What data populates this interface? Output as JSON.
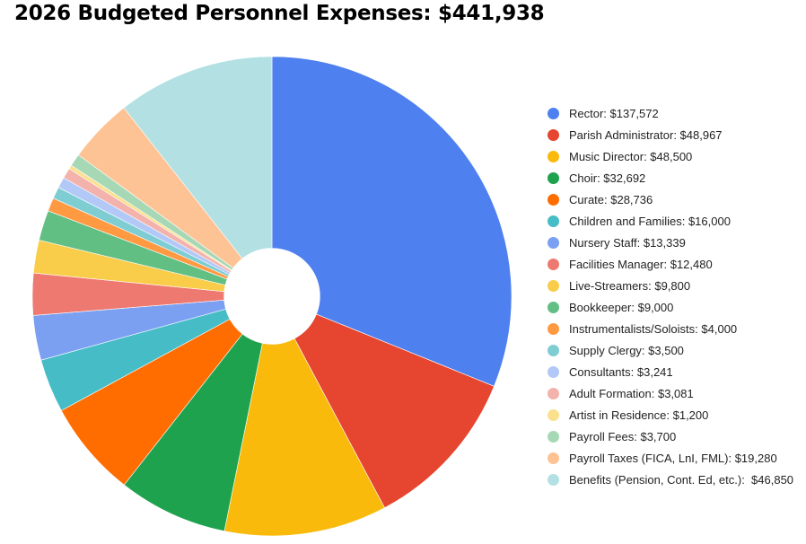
{
  "title": "2026 Budgeted Personnel Expenses: $441,938",
  "chart_data": {
    "type": "pie",
    "title": "2026 Budgeted Personnel Expenses: $441,938",
    "pie_hole": 0.2,
    "start_angle_deg": 0,
    "legend_position": "right",
    "categories": [
      "Rector",
      "Parish Administrator",
      "Music Director",
      "Choir",
      "Curate",
      "Children and Families",
      "Nursery Staff",
      "Facilities Manager",
      "Live-Streamers",
      "Bookkeeper",
      "Instrumentalists/Soloists",
      "Supply Clergy",
      "Consultants",
      "Adult Formation",
      "Artist in Residence",
      "Payroll Fees",
      "Payroll Taxes (FICA, LnI, FML)",
      "Benefits (Pension, Cont. Ed, etc.)"
    ],
    "values": [
      137572,
      48967,
      48500,
      32692,
      28736,
      16000,
      13339,
      12480,
      9800,
      9000,
      4000,
      3500,
      3241,
      3081,
      1200,
      3700,
      19280,
      46850
    ],
    "colors": [
      "#4e80ef",
      "#e6452f",
      "#f9ba0c",
      "#1fa24e",
      "#ff6d00",
      "#46bdc6",
      "#7ba0f2",
      "#ee7970",
      "#f9cd4a",
      "#62bf84",
      "#ff9a42",
      "#7ecdd3",
      "#b2c8f7",
      "#f3b2ab",
      "#fbe08d",
      "#a6d8b6",
      "#fec394",
      "#b2e0e3"
    ],
    "legend_labels": [
      "Rector: $137,572",
      "Parish Administrator: $48,967",
      "Music Director: $48,500",
      "Choir: $32,692",
      "Curate: $28,736",
      "Children and Families: $16,000",
      "Nursery Staff: $13,339",
      "Facilities Manager: $12,480",
      "Live-Streamers: $9,800",
      "Bookkeeper: $9,000",
      "Instrumentalists/Soloists: $4,000",
      "Supply Clergy: $3,500",
      "Consultants: $3,241",
      "Adult Formation: $3,081",
      "Artist in Residence: $1,200",
      "Payroll Fees: $3,700",
      "Payroll Taxes (FICA, LnI, FML): $19,280",
      "Benefits (Pension, Cont. Ed, etc.):  $46,850"
    ]
  }
}
